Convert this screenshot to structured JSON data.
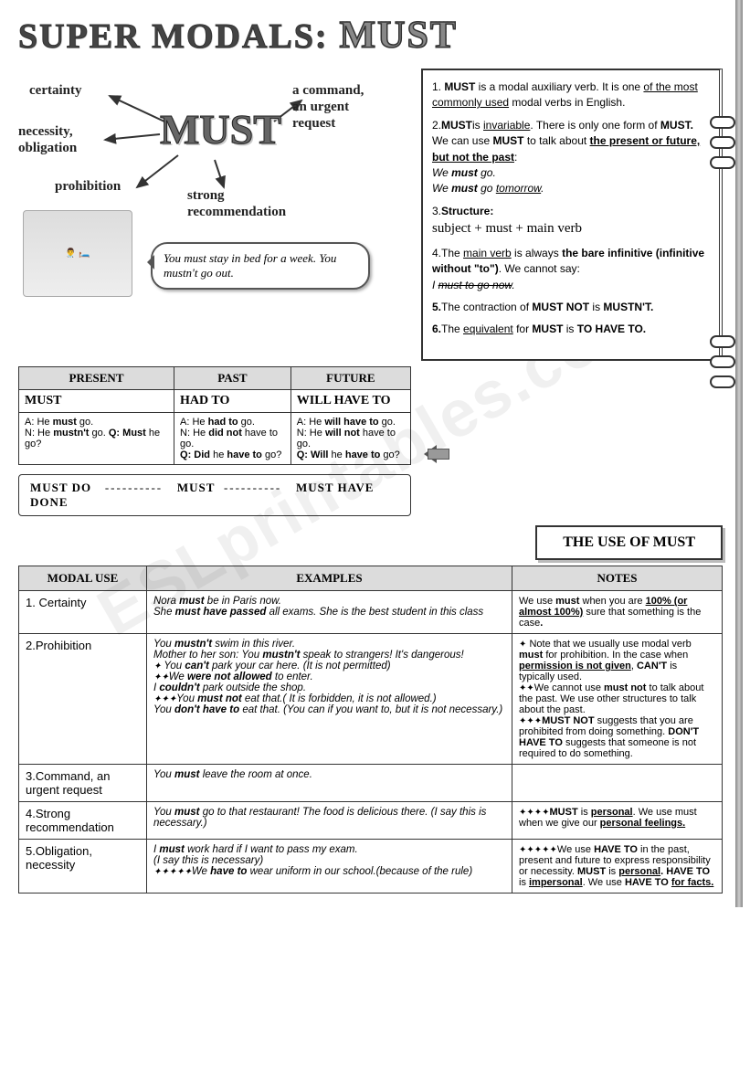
{
  "title": {
    "main": "SUPER MODALS:",
    "accent": "MUST"
  },
  "mindmap": {
    "center": "MUST",
    "arms": {
      "certainty": "certainty",
      "necessity": "necessity,\nobligation",
      "prohibition": "prohibition",
      "command": "a command,\nan urgent\nrequest",
      "recommend": "strong\nrecommendation"
    },
    "speech": "You must stay in bed for a week.  You mustn't go out."
  },
  "rules": {
    "r1a": "1. ",
    "r1b": "MUST",
    "r1c": " is a modal auxiliary verb. It is one ",
    "r1d": "of the most commonly used",
    "r1e": " modal verbs in English.",
    "r2a": "2.",
    "r2b": "MUST",
    "r2c": "is ",
    "r2d": "invariable",
    "r2e": ". There is only one form of ",
    "r2f": "MUST.",
    "r2g": " We can use ",
    "r2h": "MUST",
    "r2i": " to talk about ",
    "r2j": "the present or future, but not the past",
    "r2k": ":",
    "r2ex1a": "We ",
    "r2ex1b": "must",
    "r2ex1c": " go.",
    "r2ex2a": "We ",
    "r2ex2b": "must",
    "r2ex2c": " go ",
    "r2ex2d": "tomorrow",
    "r2ex2e": ".",
    "r3a": "3.",
    "r3b": "Structure:",
    "r3c": "subject + must + main verb",
    "r4a": "4.The ",
    "r4b": "main verb",
    "r4c": " is always ",
    "r4d": "the bare infinitive (infinitive without \"to\")",
    "r4e": ". We cannot say:",
    "r4ex": "I must to go now.",
    "r5a": "5.",
    "r5b": "The contraction of ",
    "r5c": "MUST NOT",
    "r5d": " is ",
    "r5e": "MUSTN'T.",
    "r6a": "6.",
    "r6b": "The ",
    "r6c": "equivalent",
    "r6d": " for ",
    "r6e": "MUST",
    "r6f": " is  ",
    "r6g": "TO HAVE TO."
  },
  "tense": {
    "headers": [
      "PRESENT",
      "PAST",
      "FUTURE"
    ],
    "forms": [
      "MUST",
      "HAD TO",
      "WILL HAVE TO"
    ],
    "cells": [
      "A: He <b>must</b> go.<br>N: He <b>mustn't</b> go. <b>Q: Must</b> he go?",
      "A: He <b>had to</b> go.<br>N: He <b>did not</b> have to go.<br><b>Q: Did</b> he <b>have to</b> go?",
      "A: He <b>will have to</b> go.<br>N: He <b>will not</b> have to go.<br><b>Q: Will</b> he <b>have to</b> go?"
    ]
  },
  "timeline": {
    "a": "MUST  DO",
    "b": "MUST",
    "c": "MUST HAVE DONE"
  },
  "useBanner": "THE USE OF MUST",
  "useTable": {
    "headers": [
      "MODAL USE",
      "EXAMPLES",
      "NOTES"
    ],
    "rows": [
      {
        "label": "1. Certainty",
        "examples": "Nora <b>must</b> be in Paris now.<br>She <b>must have passed</b> all exams. She is the best student in this class",
        "notes": "We use <b>must</b> when you are <b><u>100% (or almost 100%)</u></b> sure that something is the case<b>.</b>"
      },
      {
        "label": "2.Prohibition",
        "examples": "You <b>mustn't</b> swim in this river.<br>Mother to her son:  You <b>mustn't</b> speak to strangers! It's dangerous!<br><span class='diamond'>✦</span> You <b>can't</b> park your car here. (It is not permitted)<br><span class='diamond'>✦✦</span>We <b>were not allowed</b> to enter.<br>I <b>couldn't</b> park outside the shop.<br><span class='diamond'>✦✦✦</span>You <b>must not</b> eat that.( It is forbidden, it is not allowed.)<br>You <b>don't have to</b> eat that. (You can if you want to, but it is not necessary.)",
        "notes": "<span class='diamond'>✦</span>  Note that we usually use modal verb <b>must</b> for prohibition. In the case when <b><u>permission is not given</u></b>, <b>CAN'T</b> is typically used.<br><span class='diamond'>✦✦</span>We cannot use <b>must not</b> to talk about the past. We use other structures to talk about the past.<br><span class='diamond'>✦✦✦</span><b>MUST NOT</b> suggests that you are prohibited from doing something. <b>DON'T HAVE TO</b> suggests that someone is not required to do something."
      },
      {
        "label": "3.Command, an urgent request",
        "examples": "You <b>must</b> leave the room at once.",
        "notes": ""
      },
      {
        "label": "4.Strong recommendation",
        "examples": "You <b>must</b> go to that restaurant! The food is delicious there. (I say this is necessary.)",
        "notes": "<span class='diamond'>✦✦✦✦</span><b>MUST</b> is <b><u>personal</u></b>. We use must when we give our <b><u>personal feelings.</u></b>"
      },
      {
        "label": "5.Obligation, necessity",
        "examples": "I <b>must</b> work hard if I want to pass my exam.<br>(I say this is necessary)<br><span class='diamond'>✦✦✦✦✦</span>We <b>have to</b> wear uniform in our school.(because of the rule)",
        "notes": "<span class='diamond'>✦✦✦✦✦</span>We use <b>HAVE TO</b> in the past, present and future to express responsibility or necessity. <b>MUST</b> is <b><u>personal</u>. HAVE TO</b> is <b><u>impersonal</u></b>. We use <b>HAVE TO <u>for facts.</u></b>"
      }
    ]
  },
  "watermark": "ESLprintables.com"
}
